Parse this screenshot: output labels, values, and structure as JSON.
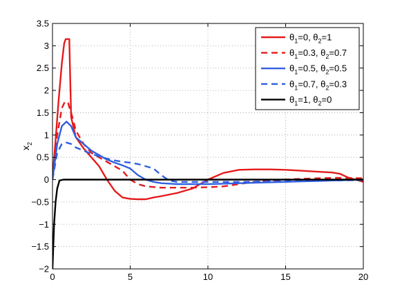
{
  "chart_data": {
    "type": "line",
    "title": "",
    "xlabel": "",
    "ylabel": "x",
    "ylabel_subscript": "2",
    "xlim": [
      0,
      20
    ],
    "ylim": [
      -2,
      3.5
    ],
    "xticks": [
      0,
      5,
      10,
      15,
      20
    ],
    "yticks": [
      -2,
      -1.5,
      -1,
      -0.5,
      0,
      0.5,
      1,
      1.5,
      2,
      2.5,
      3,
      3.5
    ],
    "xtick_labels": [
      "0",
      "5",
      "10",
      "15",
      "20"
    ],
    "ytick_labels": [
      "−2",
      "−1.5",
      "−1",
      "−0.5",
      "0",
      "0.5",
      "1",
      "1.5",
      "2",
      "2.5",
      "3",
      "3.5"
    ],
    "grid": true,
    "legend_position": "top-right",
    "series": [
      {
        "legend": [
          {
            "sym": "θ",
            "sub": "1",
            "txt": "=0, "
          },
          {
            "sym": "θ",
            "sub": "2",
            "txt": "=1"
          }
        ],
        "color": "#e41a1c",
        "dash": "solid",
        "x": [
          0,
          0.2,
          0.4,
          0.6,
          0.75,
          0.85,
          1.0,
          1.08,
          1.2,
          1.5,
          2.0,
          2.5,
          3.0,
          3.5,
          4.0,
          4.5,
          5.0,
          5.5,
          6.0,
          6.5,
          7.0,
          8.0,
          9.0,
          10.0,
          11.0,
          12.0,
          13.0,
          14.0,
          15.0,
          16.0,
          17.0,
          18.0,
          18.5,
          19.0,
          19.5,
          20.0
        ],
        "y": [
          0,
          0.9,
          1.8,
          2.6,
          3.05,
          3.15,
          3.15,
          3.15,
          1.4,
          0.95,
          0.7,
          0.5,
          0.3,
          0.0,
          -0.25,
          -0.4,
          -0.43,
          -0.44,
          -0.44,
          -0.4,
          -0.37,
          -0.3,
          -0.2,
          0.0,
          0.15,
          0.22,
          0.23,
          0.23,
          0.22,
          0.2,
          0.18,
          0.16,
          0.13,
          0.05,
          0.0,
          -0.05
        ]
      },
      {
        "legend": [
          {
            "sym": "θ",
            "sub": "1",
            "txt": "=0.3, "
          },
          {
            "sym": "θ",
            "sub": "2",
            "txt": "=0.7"
          }
        ],
        "color": "#e41a1c",
        "dash": "dashed",
        "x": [
          0,
          0.3,
          0.6,
          0.8,
          1.0,
          1.2,
          1.5,
          2.0,
          2.5,
          3.0,
          3.5,
          4.0,
          4.5,
          5.0,
          5.5,
          6.0,
          7.0,
          8.0,
          9.0,
          10.0,
          11.0,
          12.0,
          13.0,
          14.0,
          15.0,
          16.0,
          17.0,
          18.0,
          19.0,
          20.0
        ],
        "y": [
          0,
          1.0,
          1.6,
          1.75,
          1.72,
          1.5,
          1.1,
          0.8,
          0.6,
          0.5,
          0.4,
          0.3,
          0.2,
          0.0,
          -0.1,
          -0.15,
          -0.18,
          -0.18,
          -0.18,
          -0.17,
          -0.15,
          -0.1,
          -0.05,
          -0.02,
          0.0,
          0.02,
          0.03,
          0.04,
          0.04,
          0.03
        ]
      },
      {
        "legend": [
          {
            "sym": "θ",
            "sub": "1",
            "txt": "=0.5, "
          },
          {
            "sym": "θ",
            "sub": "2",
            "txt": "=0.5"
          }
        ],
        "color": "#2f5fe0",
        "dash": "solid",
        "x": [
          0,
          0.3,
          0.6,
          0.9,
          1.2,
          1.5,
          2.0,
          2.5,
          3.0,
          3.5,
          4.0,
          4.5,
          5.0,
          5.5,
          6.0,
          6.5,
          7.0,
          8.0,
          9.0,
          10.0,
          11.0,
          12.0,
          13.0,
          14.0,
          15.0,
          16.0,
          17.0,
          18.0,
          19.0,
          20.0
        ],
        "y": [
          0,
          0.8,
          1.2,
          1.3,
          1.2,
          0.95,
          0.8,
          0.65,
          0.55,
          0.45,
          0.38,
          0.32,
          0.25,
          0.1,
          0.0,
          -0.05,
          -0.08,
          -0.1,
          -0.1,
          -0.1,
          -0.09,
          -0.08,
          -0.07,
          -0.06,
          -0.05,
          -0.04,
          -0.03,
          -0.02,
          -0.01,
          0.0
        ]
      },
      {
        "legend": [
          {
            "sym": "θ",
            "sub": "1",
            "txt": "=0.7, "
          },
          {
            "sym": "θ",
            "sub": "2",
            "txt": "=0.3"
          }
        ],
        "color": "#2f5fe0",
        "dash": "dashed",
        "x": [
          0,
          0.3,
          0.6,
          0.9,
          1.2,
          1.5,
          2.0,
          2.5,
          3.0,
          3.5,
          4.0,
          4.5,
          5.0,
          5.5,
          6.0,
          6.5,
          7.0,
          7.5,
          8.0,
          9.0,
          10.0,
          12.0,
          14.0,
          16.0,
          18.0,
          20.0
        ],
        "y": [
          0,
          0.6,
          0.8,
          0.83,
          0.8,
          0.72,
          0.65,
          0.58,
          0.52,
          0.47,
          0.43,
          0.4,
          0.38,
          0.35,
          0.3,
          0.25,
          0.1,
          -0.02,
          -0.05,
          -0.05,
          -0.05,
          -0.05,
          -0.04,
          -0.03,
          -0.02,
          -0.01
        ]
      },
      {
        "legend": [
          {
            "sym": "θ",
            "sub": "1",
            "txt": "=1, "
          },
          {
            "sym": "θ",
            "sub": "2",
            "txt": "=0"
          }
        ],
        "color": "#000000",
        "dash": "solid",
        "x": [
          0,
          0.1,
          0.2,
          0.3,
          0.45,
          0.7,
          1.0,
          5,
          10,
          15,
          20
        ],
        "y": [
          -2,
          -1.0,
          -0.5,
          -0.2,
          -0.02,
          0.0,
          0.0,
          0.0,
          0.0,
          0.0,
          0.0
        ]
      }
    ]
  }
}
